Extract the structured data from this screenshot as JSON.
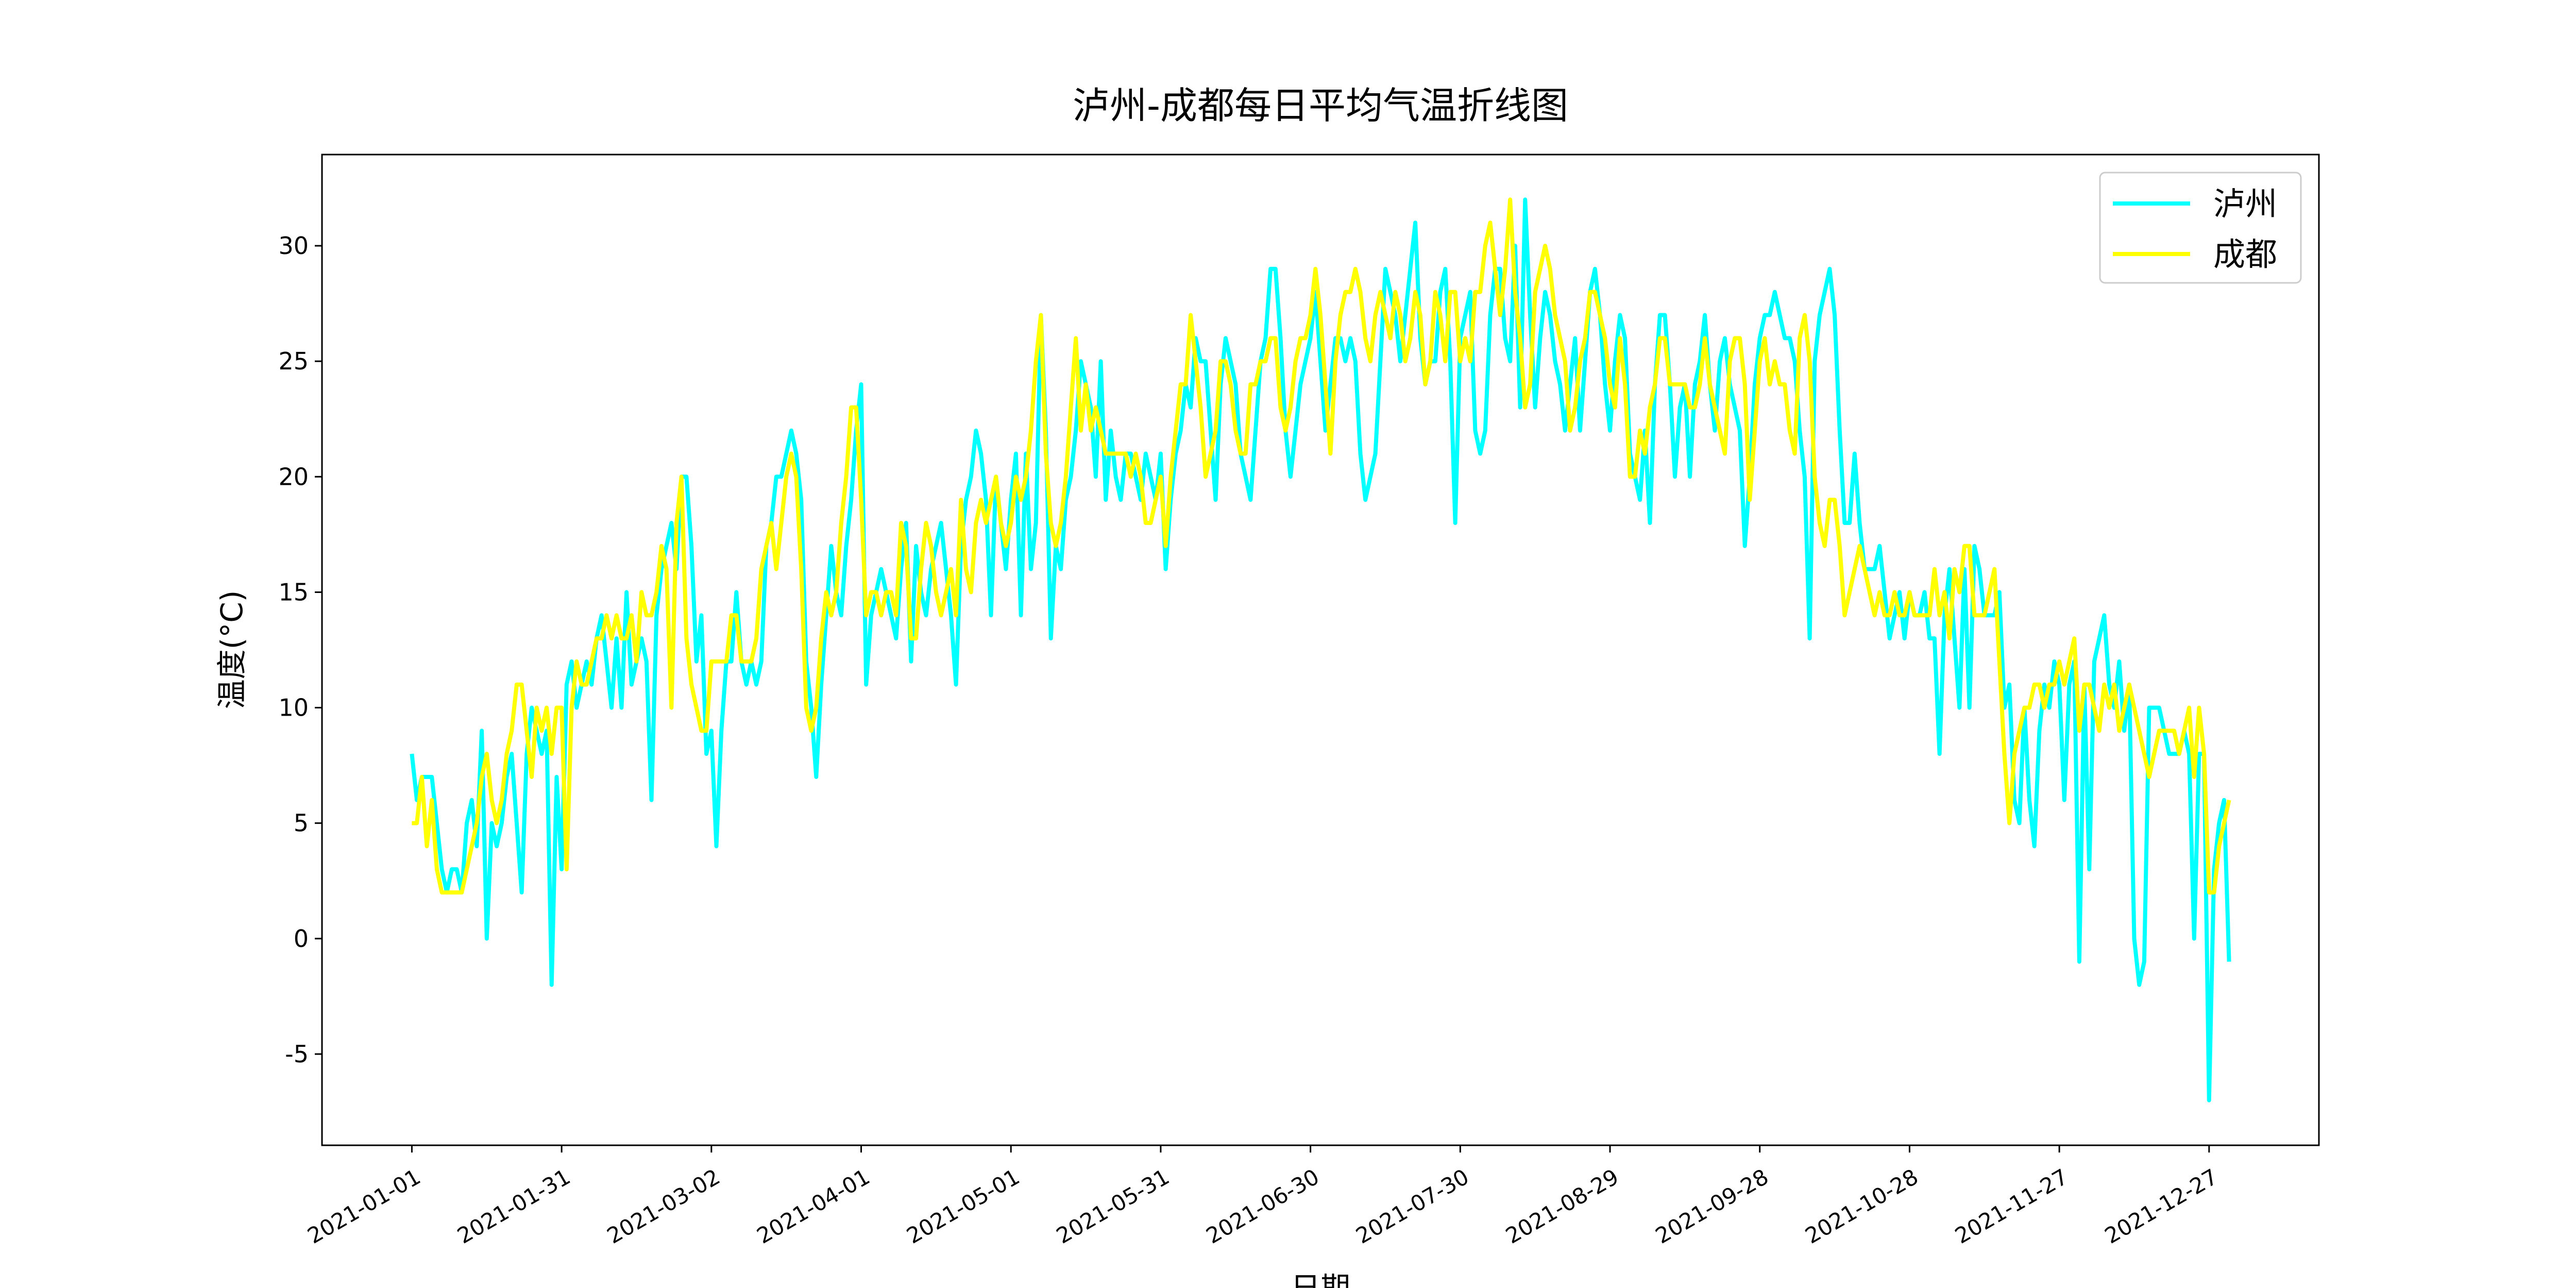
{
  "chart_data": {
    "type": "line",
    "title": "泸州-成都每日平均气温折线图",
    "x_label": "日期",
    "y_label": "温度(°C)",
    "x": [
      "2021-01-01",
      "2021-01-02",
      "2021-01-03",
      "2021-01-04",
      "2021-01-05",
      "2021-01-06",
      "2021-01-07",
      "2021-01-08",
      "2021-01-09",
      "2021-01-10",
      "2021-01-11",
      "2021-01-12",
      "2021-01-13",
      "2021-01-14",
      "2021-01-15",
      "2021-01-16",
      "2021-01-17",
      "2021-01-18",
      "2021-01-19",
      "2021-01-20",
      "2021-01-21",
      "2021-01-22",
      "2021-01-23",
      "2021-01-24",
      "2021-01-25",
      "2021-01-26",
      "2021-01-27",
      "2021-01-28",
      "2021-01-29",
      "2021-01-30",
      "2021-01-31",
      "2021-02-01",
      "2021-02-02",
      "2021-02-03",
      "2021-02-04",
      "2021-02-05",
      "2021-02-06",
      "2021-02-07",
      "2021-02-08",
      "2021-02-09",
      "2021-02-10",
      "2021-02-11",
      "2021-02-12",
      "2021-02-13",
      "2021-02-14",
      "2021-02-15",
      "2021-02-16",
      "2021-02-17",
      "2021-02-18",
      "2021-02-19",
      "2021-02-20",
      "2021-02-21",
      "2021-02-22",
      "2021-02-23",
      "2021-02-24",
      "2021-02-25",
      "2021-02-26",
      "2021-02-27",
      "2021-02-28",
      "2021-03-01",
      "2021-03-02",
      "2021-03-03",
      "2021-03-04",
      "2021-03-05",
      "2021-03-06",
      "2021-03-07",
      "2021-03-08",
      "2021-03-09",
      "2021-03-10",
      "2021-03-11",
      "2021-03-12",
      "2021-03-13",
      "2021-03-14",
      "2021-03-15",
      "2021-03-16",
      "2021-03-17",
      "2021-03-18",
      "2021-03-19",
      "2021-03-20",
      "2021-03-21",
      "2021-03-22",
      "2021-03-23",
      "2021-03-24",
      "2021-03-25",
      "2021-03-26",
      "2021-03-27",
      "2021-03-28",
      "2021-03-29",
      "2021-03-30",
      "2021-03-31",
      "2021-04-01",
      "2021-04-02",
      "2021-04-03",
      "2021-04-04",
      "2021-04-05",
      "2021-04-06",
      "2021-04-07",
      "2021-04-08",
      "2021-04-09",
      "2021-04-10",
      "2021-04-11",
      "2021-04-12",
      "2021-04-13",
      "2021-04-14",
      "2021-04-15",
      "2021-04-16",
      "2021-04-17",
      "2021-04-18",
      "2021-04-19",
      "2021-04-20",
      "2021-04-21",
      "2021-04-22",
      "2021-04-23",
      "2021-04-24",
      "2021-04-25",
      "2021-04-26",
      "2021-04-27",
      "2021-04-28",
      "2021-04-29",
      "2021-04-30",
      "2021-05-01",
      "2021-05-02",
      "2021-05-03",
      "2021-05-04",
      "2021-05-05",
      "2021-05-06",
      "2021-05-07",
      "2021-05-08",
      "2021-05-09",
      "2021-05-10",
      "2021-05-11",
      "2021-05-12",
      "2021-05-13",
      "2021-05-14",
      "2021-05-15",
      "2021-05-16",
      "2021-05-17",
      "2021-05-18",
      "2021-05-19",
      "2021-05-20",
      "2021-05-21",
      "2021-05-22",
      "2021-05-23",
      "2021-05-24",
      "2021-05-25",
      "2021-05-26",
      "2021-05-27",
      "2021-05-28",
      "2021-05-29",
      "2021-05-30",
      "2021-05-31",
      "2021-06-01",
      "2021-06-02",
      "2021-06-03",
      "2021-06-04",
      "2021-06-05",
      "2021-06-06",
      "2021-06-07",
      "2021-06-08",
      "2021-06-09",
      "2021-06-10",
      "2021-06-11",
      "2021-06-12",
      "2021-06-13",
      "2021-06-14",
      "2021-06-15",
      "2021-06-16",
      "2021-06-17",
      "2021-06-18",
      "2021-06-19",
      "2021-06-20",
      "2021-06-21",
      "2021-06-22",
      "2021-06-23",
      "2021-06-24",
      "2021-06-25",
      "2021-06-26",
      "2021-06-27",
      "2021-06-28",
      "2021-06-29",
      "2021-06-30",
      "2021-07-01",
      "2021-07-02",
      "2021-07-03",
      "2021-07-04",
      "2021-07-05",
      "2021-07-06",
      "2021-07-07",
      "2021-07-08",
      "2021-07-09",
      "2021-07-10",
      "2021-07-11",
      "2021-07-12",
      "2021-07-13",
      "2021-07-14",
      "2021-07-15",
      "2021-07-16",
      "2021-07-17",
      "2021-07-18",
      "2021-07-19",
      "2021-07-20",
      "2021-07-21",
      "2021-07-22",
      "2021-07-23",
      "2021-07-24",
      "2021-07-25",
      "2021-07-26",
      "2021-07-27",
      "2021-07-28",
      "2021-07-29",
      "2021-07-30",
      "2021-07-31",
      "2021-08-01",
      "2021-08-02",
      "2021-08-03",
      "2021-08-04",
      "2021-08-05",
      "2021-08-06",
      "2021-08-07",
      "2021-08-08",
      "2021-08-09",
      "2021-08-10",
      "2021-08-11",
      "2021-08-12",
      "2021-08-13",
      "2021-08-14",
      "2021-08-15",
      "2021-08-16",
      "2021-08-17",
      "2021-08-18",
      "2021-08-19",
      "2021-08-20",
      "2021-08-21",
      "2021-08-22",
      "2021-08-23",
      "2021-08-24",
      "2021-08-25",
      "2021-08-26",
      "2021-08-27",
      "2021-08-28",
      "2021-08-29",
      "2021-08-30",
      "2021-08-31",
      "2021-09-01",
      "2021-09-02",
      "2021-09-03",
      "2021-09-04",
      "2021-09-05",
      "2021-09-06",
      "2021-09-07",
      "2021-09-08",
      "2021-09-09",
      "2021-09-10",
      "2021-09-11",
      "2021-09-12",
      "2021-09-13",
      "2021-09-14",
      "2021-09-15",
      "2021-09-16",
      "2021-09-17",
      "2021-09-18",
      "2021-09-19",
      "2021-09-20",
      "2021-09-21",
      "2021-09-22",
      "2021-09-23",
      "2021-09-24",
      "2021-09-25",
      "2021-09-26",
      "2021-09-27",
      "2021-09-28",
      "2021-09-29",
      "2021-09-30",
      "2021-10-01",
      "2021-10-02",
      "2021-10-03",
      "2021-10-04",
      "2021-10-05",
      "2021-10-06",
      "2021-10-07",
      "2021-10-08",
      "2021-10-09",
      "2021-10-10",
      "2021-10-11",
      "2021-10-12",
      "2021-10-13",
      "2021-10-14",
      "2021-10-15",
      "2021-10-16",
      "2021-10-17",
      "2021-10-18",
      "2021-10-19",
      "2021-10-20",
      "2021-10-21",
      "2021-10-22",
      "2021-10-23",
      "2021-10-24",
      "2021-10-25",
      "2021-10-26",
      "2021-10-27",
      "2021-10-28",
      "2021-10-29",
      "2021-10-30",
      "2021-10-31",
      "2021-11-01",
      "2021-11-02",
      "2021-11-03",
      "2021-11-04",
      "2021-11-05",
      "2021-11-06",
      "2021-11-07",
      "2021-11-08",
      "2021-11-09",
      "2021-11-10",
      "2021-11-11",
      "2021-11-12",
      "2021-11-13",
      "2021-11-14",
      "2021-11-15",
      "2021-11-16",
      "2021-11-17",
      "2021-11-18",
      "2021-11-19",
      "2021-11-20",
      "2021-11-21",
      "2021-11-22",
      "2021-11-23",
      "2021-11-24",
      "2021-11-25",
      "2021-11-26",
      "2021-11-27",
      "2021-11-28",
      "2021-11-29",
      "2021-11-30",
      "2021-12-01",
      "2021-12-02",
      "2021-12-03",
      "2021-12-04",
      "2021-12-05",
      "2021-12-06",
      "2021-12-07",
      "2021-12-08",
      "2021-12-09",
      "2021-12-10",
      "2021-12-11",
      "2021-12-12",
      "2021-12-13",
      "2021-12-14",
      "2021-12-15",
      "2021-12-16",
      "2021-12-17",
      "2021-12-18",
      "2021-12-19",
      "2021-12-20",
      "2021-12-21",
      "2021-12-22",
      "2021-12-23",
      "2021-12-24",
      "2021-12-25",
      "2021-12-26",
      "2021-12-27",
      "2021-12-28",
      "2021-12-29",
      "2021-12-30",
      "2021-12-31"
    ],
    "series": [
      {
        "name": "泸州",
        "color": "#00ffff",
        "values": [
          8,
          6,
          7,
          7,
          7,
          5,
          3,
          2,
          3,
          3,
          2,
          5,
          6,
          4,
          9,
          0,
          5,
          4,
          5,
          7,
          8,
          5,
          2,
          8,
          10,
          9,
          8,
          9,
          -2,
          7,
          3,
          11,
          12,
          10,
          11,
          12,
          11,
          13,
          14,
          12,
          10,
          13,
          10,
          15,
          11,
          12,
          13,
          12,
          6,
          14,
          16,
          17,
          18,
          16,
          20,
          20,
          17,
          12,
          14,
          8,
          9,
          4,
          9,
          12,
          12,
          15,
          12,
          11,
          12,
          11,
          12,
          17,
          18,
          20,
          20,
          21,
          22,
          21,
          19,
          12,
          10,
          7,
          11,
          14,
          17,
          15,
          14,
          17,
          19,
          22,
          24,
          11,
          14,
          15,
          16,
          15,
          14,
          13,
          16,
          18,
          12,
          17,
          15,
          14,
          16,
          17,
          18,
          16,
          14,
          11,
          17,
          19,
          20,
          22,
          21,
          19,
          14,
          20,
          18,
          16,
          19,
          21,
          14,
          21,
          16,
          18,
          27,
          22,
          13,
          17,
          16,
          19,
          20,
          22,
          25,
          24,
          23,
          20,
          25,
          19,
          22,
          20,
          19,
          21,
          21,
          20,
          19,
          21,
          20,
          19,
          21,
          16,
          19,
          21,
          22,
          24,
          23,
          26,
          25,
          25,
          22,
          19,
          24,
          26,
          25,
          24,
          21,
          20,
          19,
          22,
          25,
          26,
          29,
          29,
          26,
          22,
          20,
          22,
          24,
          25,
          26,
          28,
          25,
          22,
          24,
          26,
          26,
          25,
          26,
          25,
          21,
          19,
          20,
          21,
          25,
          29,
          28,
          27,
          25,
          27,
          29,
          31,
          26,
          24,
          25,
          25,
          28,
          29,
          25,
          18,
          26,
          27,
          28,
          22,
          21,
          22,
          27,
          29,
          29,
          26,
          25,
          30,
          23,
          32,
          27,
          23,
          26,
          28,
          27,
          25,
          24,
          22,
          24,
          26,
          22,
          25,
          28,
          29,
          27,
          24,
          22,
          25,
          27,
          26,
          21,
          20,
          19,
          22,
          18,
          24,
          27,
          27,
          24,
          20,
          23,
          24,
          20,
          24,
          25,
          27,
          24,
          22,
          25,
          26,
          24,
          23,
          22,
          17,
          20,
          24,
          26,
          27,
          27,
          28,
          27,
          26,
          26,
          25,
          22,
          20,
          13,
          25,
          27,
          28,
          29,
          27,
          22,
          18,
          18,
          21,
          18,
          16,
          16,
          16,
          17,
          15,
          13,
          14,
          15,
          13,
          15,
          14,
          14,
          15,
          13,
          13,
          8,
          14,
          16,
          13,
          10,
          16,
          10,
          17,
          16,
          14,
          14,
          14,
          15,
          10,
          11,
          6,
          5,
          10,
          6,
          4,
          9,
          11,
          10,
          12,
          11,
          6,
          11,
          12,
          -1,
          11,
          3,
          12,
          13,
          14,
          11,
          10,
          12,
          9,
          11,
          0,
          -2,
          -1,
          10,
          10,
          10,
          9,
          8,
          8,
          8,
          9,
          8,
          0,
          8,
          8,
          -7,
          3,
          5,
          6,
          -1
        ]
      },
      {
        "name": "成都",
        "color": "#ffff00",
        "values": [
          5,
          5,
          7,
          4,
          6,
          3,
          2,
          2,
          2,
          2,
          2,
          3,
          4,
          5,
          7,
          8,
          6,
          5,
          6,
          8,
          9,
          11,
          11,
          9,
          7,
          10,
          9,
          10,
          8,
          10,
          10,
          3,
          10,
          12,
          11,
          11,
          12,
          13,
          13,
          14,
          13,
          14,
          13,
          13,
          14,
          12,
          15,
          14,
          14,
          15,
          17,
          16,
          10,
          18,
          20,
          13,
          11,
          10,
          9,
          9,
          12,
          12,
          12,
          12,
          14,
          14,
          12,
          12,
          12,
          13,
          16,
          17,
          18,
          16,
          18,
          20,
          21,
          20,
          16,
          10,
          9,
          10,
          13,
          15,
          14,
          15,
          18,
          20,
          23,
          23,
          19,
          14,
          15,
          15,
          14,
          15,
          15,
          14,
          18,
          17,
          13,
          13,
          16,
          18,
          17,
          15,
          14,
          15,
          16,
          14,
          19,
          16,
          15,
          18,
          19,
          18,
          19,
          20,
          18,
          17,
          18,
          20,
          19,
          20,
          22,
          25,
          27,
          21,
          18,
          17,
          18,
          20,
          23,
          26,
          22,
          24,
          22,
          23,
          22,
          21,
          21,
          21,
          21,
          21,
          20,
          21,
          20,
          18,
          18,
          19,
          20,
          17,
          20,
          22,
          24,
          24,
          27,
          25,
          23,
          20,
          21,
          22,
          25,
          25,
          24,
          22,
          21,
          21,
          24,
          24,
          25,
          25,
          26,
          26,
          23,
          22,
          23,
          25,
          26,
          26,
          27,
          29,
          27,
          24,
          21,
          25,
          27,
          28,
          28,
          29,
          28,
          26,
          25,
          27,
          28,
          27,
          26,
          28,
          27,
          25,
          26,
          28,
          27,
          24,
          25,
          28,
          27,
          25,
          28,
          28,
          25,
          26,
          25,
          28,
          28,
          30,
          31,
          29,
          27,
          29,
          32,
          28,
          26,
          23,
          24,
          28,
          29,
          30,
          29,
          27,
          26,
          25,
          22,
          23,
          25,
          26,
          28,
          28,
          27,
          26,
          24,
          23,
          26,
          24,
          20,
          20,
          22,
          21,
          23,
          24,
          26,
          26,
          24,
          24,
          24,
          24,
          23,
          23,
          24,
          26,
          24,
          23,
          22,
          21,
          25,
          26,
          26,
          24,
          19,
          22,
          25,
          26,
          24,
          25,
          24,
          24,
          22,
          21,
          26,
          27,
          25,
          20,
          18,
          17,
          19,
          19,
          17,
          14,
          15,
          16,
          17,
          16,
          15,
          14,
          15,
          14,
          14,
          15,
          14,
          14,
          15,
          14,
          14,
          14,
          14,
          16,
          14,
          15,
          13,
          16,
          15,
          17,
          17,
          14,
          14,
          14,
          15,
          16,
          12,
          8,
          5,
          8,
          9,
          10,
          10,
          11,
          11,
          10,
          11,
          11,
          12,
          11,
          12,
          13,
          9,
          11,
          11,
          10,
          9,
          11,
          10,
          11,
          9,
          10,
          11,
          10,
          9,
          8,
          7,
          8,
          9,
          9,
          9,
          9,
          8,
          9,
          10,
          7,
          10,
          8,
          2,
          2,
          4,
          5,
          6
        ]
      }
    ],
    "xlim": [
      "2020-12-14",
      "2022-01-18"
    ],
    "xticks": [
      "2021-01-01",
      "2021-01-31",
      "2021-03-02",
      "2021-04-01",
      "2021-05-01",
      "2021-05-31",
      "2021-06-30",
      "2021-07-30",
      "2021-08-29",
      "2021-09-28",
      "2021-10-28",
      "2021-11-27",
      "2021-12-27"
    ],
    "ylim": [
      -8.95,
      33.95
    ],
    "yticks": [
      -5,
      0,
      5,
      10,
      15,
      20,
      25,
      30
    ],
    "grid": false,
    "legend": "upper right"
  }
}
